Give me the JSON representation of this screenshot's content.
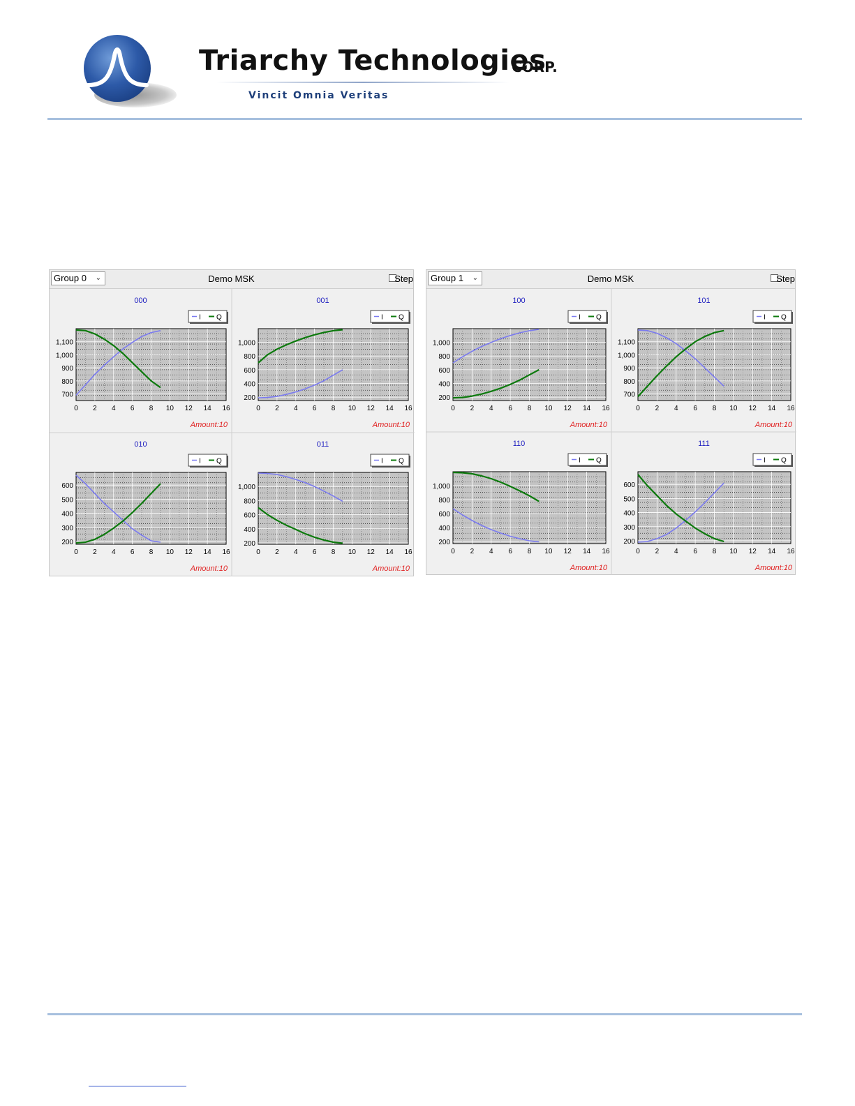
{
  "header": {
    "company": "Triarchy Technologies",
    "corp": "CORP.",
    "tagline": "Vincit Omnia Veritas"
  },
  "colors": {
    "series_I": "#7b7bf0",
    "series_Q": "#0d7a0d",
    "plot_bg": "#c4c4c4",
    "chart_title": "#2020c0",
    "amount": "#e02020",
    "rule": "#a7c0de"
  },
  "panels": [
    {
      "group_label": "Group 0",
      "title": "Demo MSK",
      "step_label": "Step",
      "step_checked": false
    },
    {
      "group_label": "Group 1",
      "title": "Demo MSK",
      "step_label": "Step",
      "step_checked": false
    }
  ],
  "chart_data": [
    {
      "type": "line",
      "title": "000",
      "legend": [
        "I",
        "Q"
      ],
      "xlim": [
        0,
        16
      ],
      "ylim": [
        650,
        1200
      ],
      "yticks": [
        700,
        800,
        900,
        1000,
        1100
      ],
      "yticklabels": [
        "700",
        "800",
        "900",
        "1,000",
        "1,100"
      ],
      "x": [
        0,
        1,
        2,
        3,
        4,
        5,
        6,
        7,
        8,
        9
      ],
      "series": [
        {
          "name": "I",
          "values": [
            690,
            770,
            850,
            920,
            985,
            1045,
            1095,
            1140,
            1170,
            1185
          ]
        },
        {
          "name": "Q",
          "values": [
            1190,
            1185,
            1160,
            1120,
            1070,
            1010,
            940,
            870,
            800,
            750
          ]
        }
      ],
      "annotation": "Amount:10"
    },
    {
      "type": "line",
      "title": "001",
      "legend": [
        "I",
        "Q"
      ],
      "xlim": [
        0,
        16
      ],
      "ylim": [
        150,
        1200
      ],
      "yticks": [
        200,
        400,
        600,
        800,
        1000
      ],
      "yticklabels": [
        "200",
        "400",
        "600",
        "800",
        "1,000"
      ],
      "x": [
        0,
        1,
        2,
        3,
        4,
        5,
        6,
        7,
        8,
        9
      ],
      "series": [
        {
          "name": "I",
          "values": [
            190,
            195,
            210,
            240,
            275,
            320,
            375,
            440,
            520,
            600
          ]
        },
        {
          "name": "Q",
          "values": [
            700,
            820,
            900,
            965,
            1020,
            1070,
            1110,
            1145,
            1170,
            1185
          ]
        }
      ],
      "annotation": "Amount:10"
    },
    {
      "type": "line",
      "title": "010",
      "legend": [
        "I",
        "Q"
      ],
      "xlim": [
        0,
        16
      ],
      "ylim": [
        180,
        690
      ],
      "yticks": [
        200,
        300,
        400,
        500,
        600
      ],
      "yticklabels": [
        "200",
        "300",
        "400",
        "500",
        "600"
      ],
      "x": [
        0,
        1,
        2,
        3,
        4,
        5,
        6,
        7,
        8,
        9
      ],
      "series": [
        {
          "name": "I",
          "values": [
            670,
            610,
            540,
            470,
            410,
            350,
            290,
            245,
            205,
            195
          ]
        },
        {
          "name": "Q",
          "values": [
            190,
            195,
            215,
            250,
            295,
            345,
            405,
            470,
            540,
            610
          ]
        }
      ],
      "annotation": "Amount:10"
    },
    {
      "type": "line",
      "title": "011",
      "legend": [
        "I",
        "Q"
      ],
      "xlim": [
        0,
        16
      ],
      "ylim": [
        180,
        1200
      ],
      "yticks": [
        200,
        400,
        600,
        800,
        1000
      ],
      "yticklabels": [
        "200",
        "400",
        "600",
        "800",
        "1,000"
      ],
      "x": [
        0,
        1,
        2,
        3,
        4,
        5,
        6,
        7,
        8,
        9
      ],
      "series": [
        {
          "name": "I",
          "values": [
            1190,
            1185,
            1170,
            1140,
            1100,
            1055,
            1000,
            935,
            865,
            790
          ]
        },
        {
          "name": "Q",
          "values": [
            700,
            600,
            520,
            450,
            390,
            330,
            280,
            240,
            210,
            195
          ]
        }
      ],
      "annotation": "Amount:10"
    },
    {
      "type": "line",
      "title": "100",
      "legend": [
        "I",
        "Q"
      ],
      "xlim": [
        0,
        16
      ],
      "ylim": [
        150,
        1200
      ],
      "yticks": [
        200,
        400,
        600,
        800,
        1000
      ],
      "yticklabels": [
        "200",
        "400",
        "600",
        "800",
        "1,000"
      ],
      "x": [
        0,
        1,
        2,
        3,
        4,
        5,
        6,
        7,
        8,
        9
      ],
      "series": [
        {
          "name": "I",
          "values": [
            700,
            790,
            870,
            940,
            1000,
            1055,
            1100,
            1140,
            1170,
            1190
          ]
        },
        {
          "name": "Q",
          "values": [
            190,
            195,
            215,
            245,
            285,
            330,
            385,
            450,
            525,
            600
          ]
        }
      ],
      "annotation": "Amount:10"
    },
    {
      "type": "line",
      "title": "101",
      "legend": [
        "I",
        "Q"
      ],
      "xlim": [
        0,
        16
      ],
      "ylim": [
        650,
        1200
      ],
      "yticks": [
        700,
        800,
        900,
        1000,
        1100
      ],
      "yticklabels": [
        "700",
        "800",
        "900",
        "1,000",
        "1,100"
      ],
      "x": [
        0,
        1,
        2,
        3,
        4,
        5,
        6,
        7,
        8,
        9
      ],
      "series": [
        {
          "name": "I",
          "values": [
            1190,
            1185,
            1165,
            1130,
            1085,
            1030,
            970,
            900,
            830,
            760
          ]
        },
        {
          "name": "Q",
          "values": [
            680,
            760,
            840,
            915,
            985,
            1045,
            1100,
            1140,
            1170,
            1185
          ]
        }
      ],
      "annotation": "Amount:10"
    },
    {
      "type": "line",
      "title": "110",
      "legend": [
        "I",
        "Q"
      ],
      "xlim": [
        0,
        16
      ],
      "ylim": [
        170,
        1200
      ],
      "yticks": [
        200,
        400,
        600,
        800,
        1000
      ],
      "yticklabels": [
        "200",
        "400",
        "600",
        "800",
        "1,000"
      ],
      "x": [
        0,
        1,
        2,
        3,
        4,
        5,
        6,
        7,
        8,
        9
      ],
      "series": [
        {
          "name": "I",
          "values": [
            670,
            580,
            500,
            430,
            370,
            320,
            275,
            240,
            210,
            195
          ]
        },
        {
          "name": "Q",
          "values": [
            1190,
            1185,
            1170,
            1140,
            1100,
            1050,
            990,
            925,
            855,
            775
          ]
        }
      ],
      "annotation": "Amount:10"
    },
    {
      "type": "line",
      "title": "111",
      "legend": [
        "I",
        "Q"
      ],
      "xlim": [
        0,
        16
      ],
      "ylim": [
        180,
        690
      ],
      "yticks": [
        200,
        300,
        400,
        500,
        600
      ],
      "yticklabels": [
        "200",
        "300",
        "400",
        "500",
        "600"
      ],
      "x": [
        0,
        1,
        2,
        3,
        4,
        5,
        6,
        7,
        8,
        9
      ],
      "series": [
        {
          "name": "I",
          "values": [
            190,
            195,
            215,
            245,
            290,
            345,
            405,
            470,
            540,
            610
          ]
        },
        {
          "name": "Q",
          "values": [
            670,
            590,
            520,
            450,
            390,
            340,
            290,
            250,
            215,
            195
          ]
        }
      ],
      "annotation": "Amount:10"
    }
  ]
}
